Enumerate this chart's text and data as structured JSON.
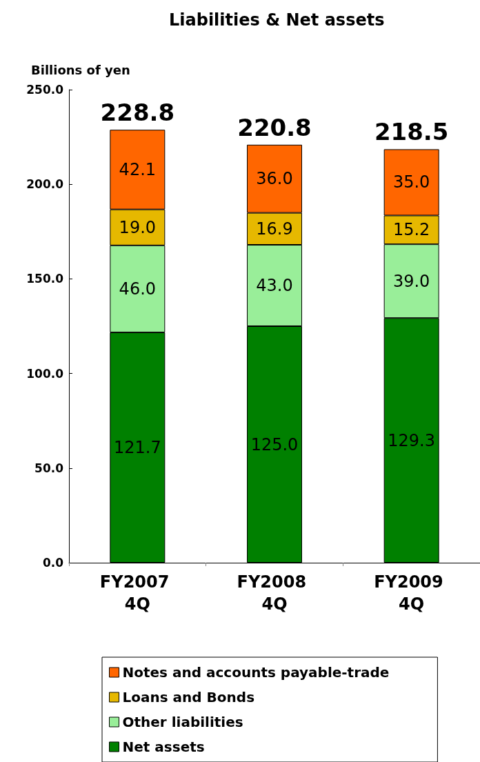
{
  "chart_data": {
    "type": "bar",
    "title": "Liabilities & Net assets",
    "ylabel": "Billions of yen",
    "categories": [
      "FY2007 4Q",
      "FY2008 4Q",
      "FY2009 4Q"
    ],
    "stacked": true,
    "series": [
      {
        "name": "Net assets",
        "color": "#008000",
        "values": [
          121.7,
          125.0,
          129.3
        ],
        "value_labels": [
          "121.7",
          "125.0",
          "129.3"
        ]
      },
      {
        "name": "Other liabilities",
        "color": "#99ee99",
        "values": [
          46.0,
          43.0,
          39.0
        ],
        "value_labels": [
          "46.0",
          "43.0",
          "39.0"
        ]
      },
      {
        "name": "Loans and Bonds",
        "color": "#e6b800",
        "values": [
          19.0,
          16.9,
          15.2
        ],
        "value_labels": [
          "19.0",
          "16.9",
          "15.2"
        ]
      },
      {
        "name": "Notes and accounts payable-trade",
        "color": "#ff6600",
        "values": [
          42.1,
          36.0,
          35.0
        ],
        "value_labels": [
          "42.1",
          "36.0",
          "35.0"
        ]
      }
    ],
    "totals": [
      "228.8",
      "220.8",
      "218.5"
    ],
    "ylim": [
      0,
      250
    ],
    "yticks": [
      {
        "value": 0,
        "label": "0.0"
      },
      {
        "value": 50,
        "label": "50.0"
      },
      {
        "value": 100,
        "label": "100.0"
      },
      {
        "value": 150,
        "label": "150.0"
      },
      {
        "value": 200,
        "label": "200.0"
      },
      {
        "value": 250,
        "label": "250.0"
      }
    ],
    "grid": false,
    "legend": "bottom"
  }
}
